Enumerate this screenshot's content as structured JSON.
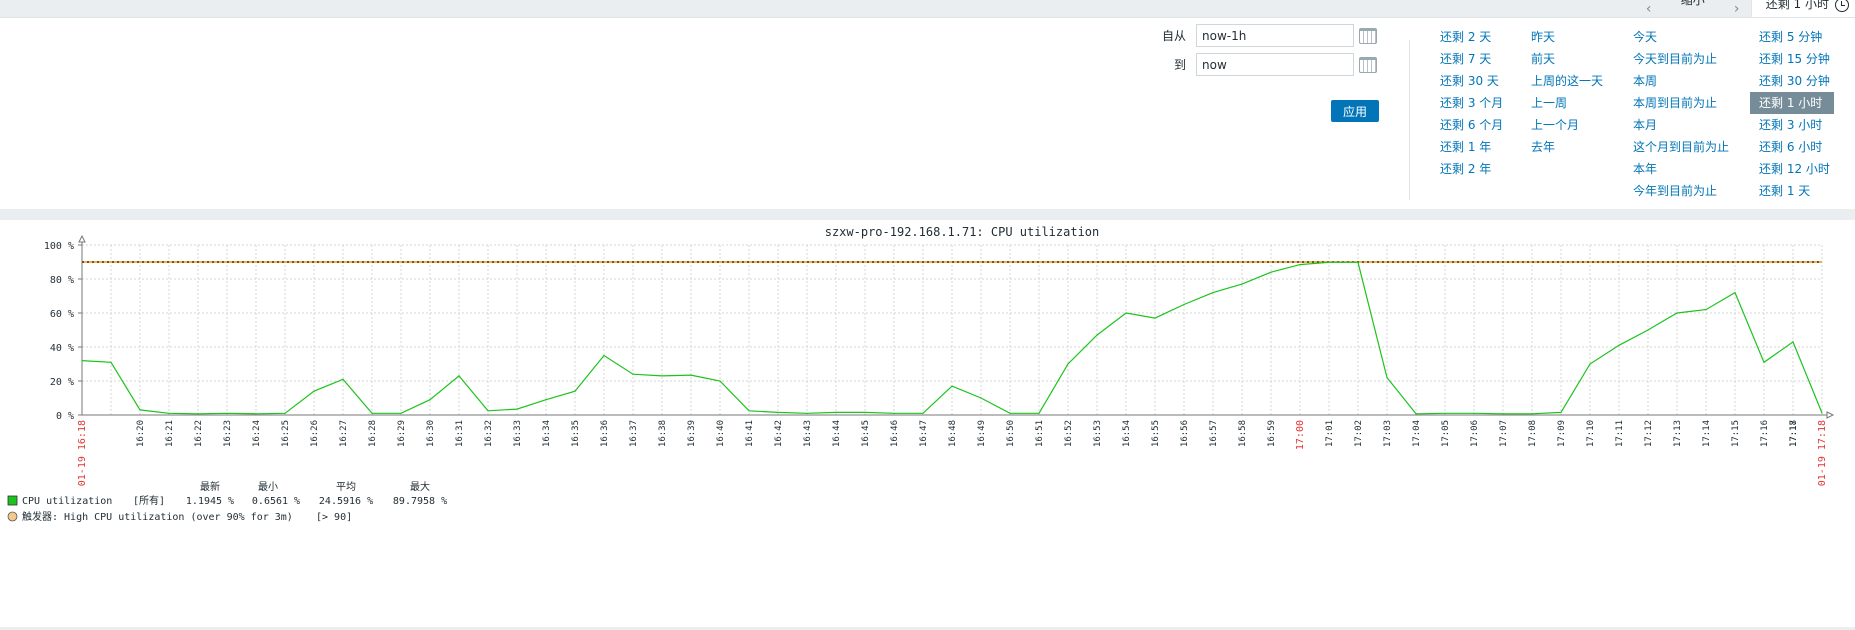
{
  "topbar": {
    "zoom_out": "缩小",
    "active_tab": "还剩 1 小时"
  },
  "filter": {
    "from_label": "自从",
    "from_value": "now-1h",
    "to_label": "到",
    "to_value": "now",
    "apply": "应用",
    "range_columns": [
      [
        "还剩 2 天",
        "还剩 7 天",
        "还剩 30 天",
        "还剩 3 个月",
        "还剩 6 个月",
        "还剩 1 年",
        "还剩 2 年"
      ],
      [
        "昨天",
        "前天",
        "上周的这一天",
        "上一周",
        "上一个月",
        "去年"
      ],
      [
        "今天",
        "今天到目前为止",
        "本周",
        "本周到目前为止",
        "本月",
        "这个月到目前为止",
        "本年",
        "今年到目前为止"
      ],
      [
        "还剩 5 分钟",
        "还剩 15 分钟",
        "还剩 30 分钟",
        "还剩 1 小时",
        "还剩 3 小时",
        "还剩 6 小时",
        "还剩 12 小时",
        "还剩 1 天"
      ]
    ],
    "selected_range": "还剩 1 小时"
  },
  "chart_data": {
    "type": "line",
    "title": "szxw-pro-192.168.1.71: CPU utilization",
    "ylim": [
      0,
      100
    ],
    "y_ticks": [
      "0 %",
      "20 %",
      "40 %",
      "60 %",
      "80 %",
      "100 %"
    ],
    "x_start_label": "01-19 16:18",
    "x_end_label": "01-19 17:18",
    "x_tick_labels": [
      "16:20",
      "16:21",
      "16:22",
      "16:23",
      "16:24",
      "16:25",
      "16:26",
      "16:27",
      "16:28",
      "16:29",
      "16:30",
      "16:31",
      "16:32",
      "16:33",
      "16:34",
      "16:35",
      "16:36",
      "16:37",
      "16:38",
      "16:39",
      "16:40",
      "16:41",
      "16:42",
      "16:43",
      "16:44",
      "16:45",
      "16:46",
      "16:47",
      "16:48",
      "16:49",
      "16:50",
      "16:51",
      "16:52",
      "16:53",
      "16:54",
      "16:55",
      "16:56",
      "16:57",
      "16:58",
      "16:59",
      "17:00",
      "17:01",
      "17:02",
      "17:03",
      "17:04",
      "17:05",
      "17:06",
      "17:07",
      "17:08",
      "17:09",
      "17:10",
      "17:11",
      "17:12",
      "17:13",
      "17:14",
      "17:15",
      "17:16",
      "17:17",
      "17:18"
    ],
    "highlight_tick": "17:00",
    "highlight_color": "#e33734",
    "series": [
      {
        "name": "CPU utilization",
        "color": "#1cc31c",
        "x": [
          "16:18",
          "16:19",
          "16:20",
          "16:21",
          "16:22",
          "16:23",
          "16:24",
          "16:25",
          "16:26",
          "16:27",
          "16:28",
          "16:29",
          "16:30",
          "16:31",
          "16:32",
          "16:33",
          "16:34",
          "16:35",
          "16:36",
          "16:37",
          "16:38",
          "16:39",
          "16:40",
          "16:41",
          "16:42",
          "16:43",
          "16:44",
          "16:45",
          "16:46",
          "16:47",
          "16:48",
          "16:49",
          "16:50",
          "16:51",
          "16:52",
          "16:53",
          "16:54",
          "16:55",
          "16:56",
          "16:57",
          "16:58",
          "16:59",
          "17:00",
          "17:01",
          "17:02",
          "17:03",
          "17:04",
          "17:05",
          "17:06",
          "17:07",
          "17:08",
          "17:09",
          "17:10",
          "17:11",
          "17:12",
          "17:13",
          "17:14",
          "17:15",
          "17:16",
          "17:17",
          "17:18"
        ],
        "values": [
          32,
          31,
          3,
          1,
          0.7,
          1,
          0.7,
          1,
          14,
          21,
          1,
          1,
          9,
          23,
          2.5,
          3.5,
          9,
          14,
          35,
          24,
          23,
          23.5,
          20,
          2.5,
          1.5,
          1,
          1.5,
          1.5,
          1,
          1,
          17,
          10,
          1,
          1,
          30,
          47,
          60,
          57,
          65,
          72,
          77,
          84,
          88.5,
          89.8,
          89.8,
          22,
          0.7,
          1,
          1,
          0.7,
          0.7,
          1.5,
          30,
          41,
          50,
          60,
          62,
          72,
          31,
          43,
          1.2
        ]
      }
    ],
    "trigger_threshold": 90,
    "trigger_color": "#d4a21e",
    "legend": {
      "headers": [
        "最新",
        "最小",
        "平均",
        "最大"
      ],
      "item_name": "CPU utilization",
      "item_scope": "[所有]",
      "item_values": [
        "1.1945 %",
        "0.6561 %",
        "24.5916 %",
        "89.7958 %"
      ],
      "item_color": "#1cc31c",
      "trigger_text": "触发器: High CPU utilization (over 90% for 3m)",
      "trigger_cond": "[> 90]",
      "trigger_swatch_color": "#f5c98e"
    }
  }
}
